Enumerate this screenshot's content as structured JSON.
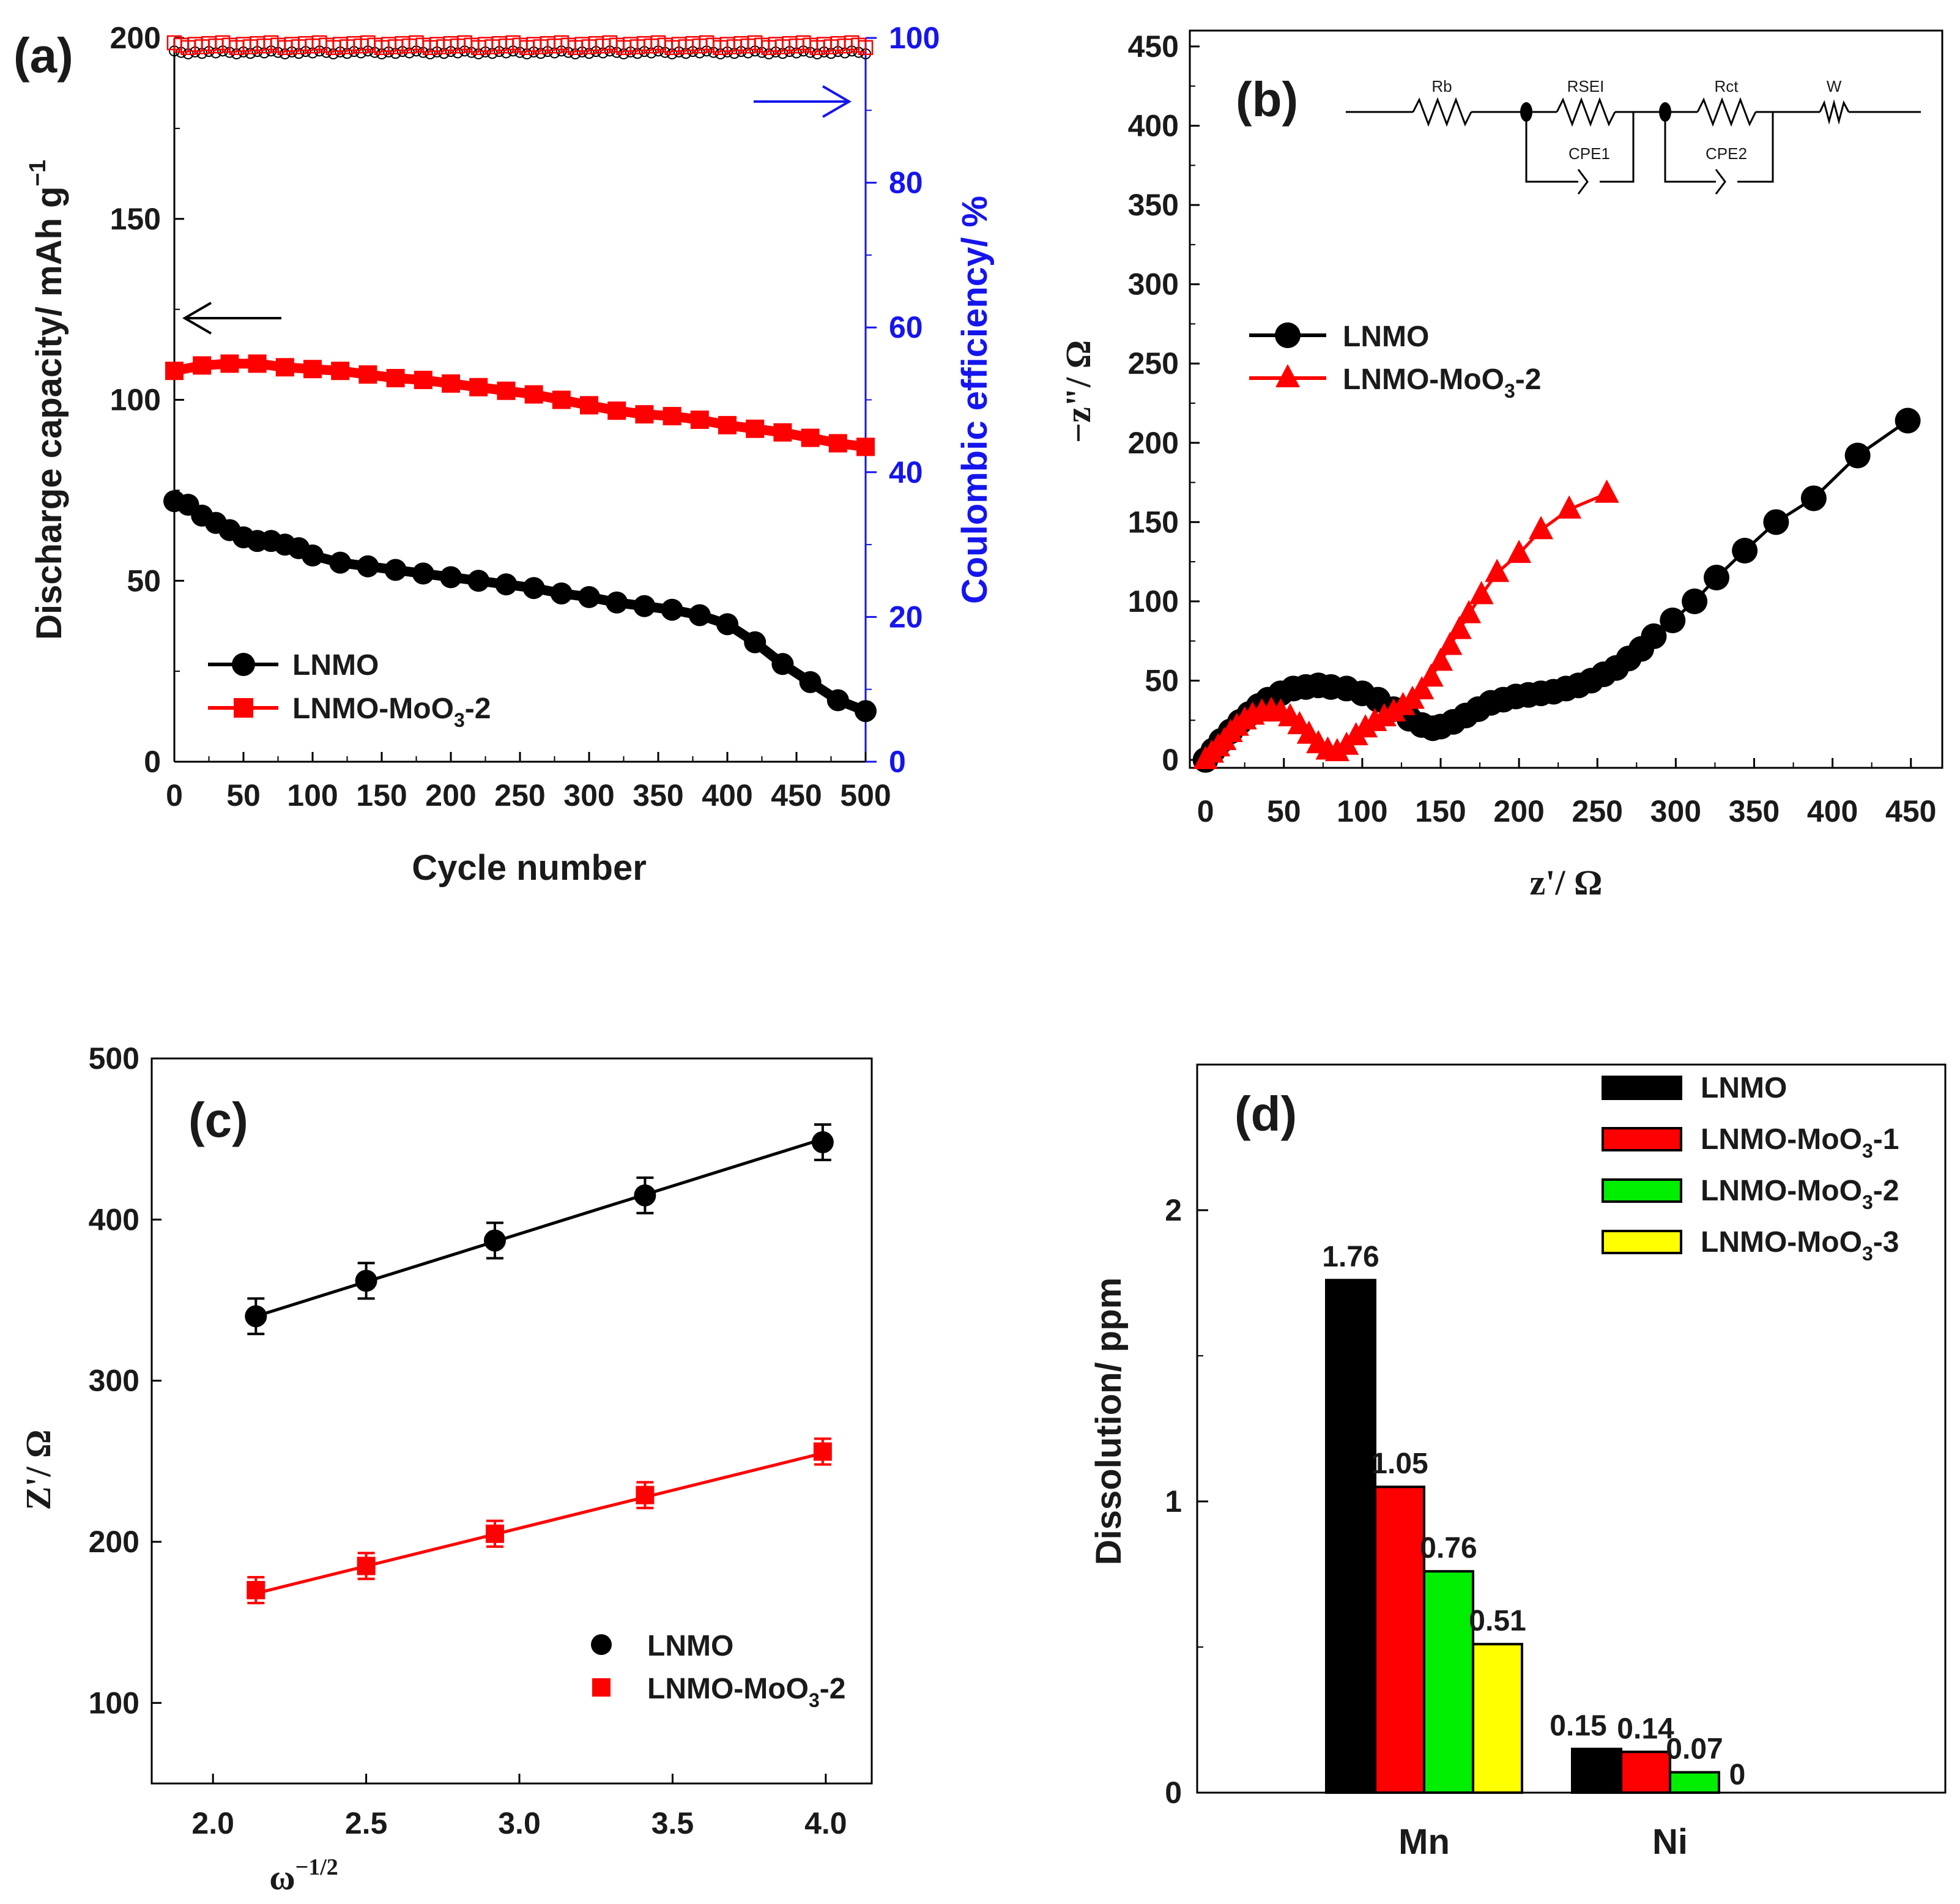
{
  "chart_data": [
    {
      "type": "line",
      "panel_label": "(a)",
      "xlabel": "Cycle number",
      "ylabel": "Discharge capacity/ mAh g",
      "ylabel_sup": "−1",
      "y2label": "Coulombic efficiency/ %",
      "xlim": [
        0,
        500
      ],
      "ylim": [
        0,
        200
      ],
      "y2lim": [
        0,
        100
      ],
      "x_ticks": [
        "0",
        "50",
        "100",
        "150",
        "200",
        "250",
        "300",
        "350",
        "400",
        "450",
        "500"
      ],
      "y_ticks": [
        "0",
        "50",
        "100",
        "150",
        "200"
      ],
      "y2_ticks": [
        "0",
        "20",
        "40",
        "60",
        "80",
        "100"
      ],
      "legend": [
        "LNMO",
        "LNMO-MoO3-2"
      ],
      "legend_main": "LNMO-MoO",
      "legend_sub": "3",
      "legend_tail": "-2",
      "series": [
        {
          "name": "LNMO",
          "color": "#000000",
          "x": [
            0,
            10,
            20,
            30,
            40,
            50,
            60,
            70,
            80,
            90,
            100,
            120,
            140,
            160,
            180,
            200,
            220,
            240,
            260,
            280,
            300,
            320,
            340,
            360,
            380,
            400,
            420,
            440,
            460,
            480,
            500
          ],
          "values": [
            72,
            71,
            68,
            66,
            64,
            62,
            61,
            61,
            60,
            59,
            57,
            55,
            54,
            53,
            52,
            51,
            50,
            49,
            48,
            46.5,
            45.5,
            44,
            43,
            42,
            40.5,
            38,
            33,
            27,
            22,
            17,
            14
          ]
        },
        {
          "name": "LNMO-MoO3-2",
          "color": "#ff0000",
          "x": [
            0,
            20,
            40,
            60,
            80,
            100,
            120,
            140,
            160,
            180,
            200,
            220,
            240,
            260,
            280,
            300,
            320,
            340,
            360,
            380,
            400,
            420,
            440,
            460,
            480,
            500
          ],
          "values": [
            108,
            109.5,
            110,
            110,
            109,
            108.5,
            108,
            107,
            106,
            105.5,
            104.5,
            103.5,
            102.5,
            101.5,
            100,
            98.5,
            97,
            96,
            95.5,
            94.5,
            93,
            92,
            91,
            89.5,
            88,
            87
          ]
        },
        {
          "name": "LNMO CE",
          "color": "#000000",
          "axis": "right",
          "value": 98
        },
        {
          "name": "LNMO-MoO3-2 CE",
          "color": "#ff0000",
          "axis": "right",
          "value": 99
        }
      ]
    },
    {
      "type": "scatter",
      "panel_label": "(b)",
      "xlabel": "z'/ Ω",
      "ylabel": "−z\"/ Ω",
      "xlim": [
        -10,
        470
      ],
      "ylim": [
        -5,
        460
      ],
      "x_ticks": [
        "0",
        "50",
        "100",
        "150",
        "200",
        "250",
        "300",
        "350",
        "400",
        "450"
      ],
      "y_ticks": [
        "0",
        "50",
        "100",
        "150",
        "200",
        "250",
        "300",
        "350",
        "400",
        "450"
      ],
      "legend": [
        "LNMO",
        "LNMO-MoO3-2"
      ],
      "legend_main": "LNMO-MoO",
      "legend_sub": "3",
      "legend_tail": "-2",
      "circuit_labels": [
        "Rb",
        "RSEI",
        "Rct",
        "W",
        "CPE1",
        "CPE2"
      ],
      "series": [
        {
          "name": "LNMO",
          "color": "#000000",
          "x": [
            0,
            5,
            10,
            16,
            22,
            28,
            34,
            40,
            48,
            56,
            64,
            72,
            80,
            90,
            100,
            110,
            120,
            130,
            138,
            145,
            150,
            158,
            166,
            174,
            182,
            190,
            198,
            206,
            214,
            222,
            230,
            238,
            246,
            254,
            262,
            270,
            278,
            286,
            298,
            312,
            326,
            344,
            364,
            388,
            416,
            448
          ],
          "values": [
            0,
            6,
            12,
            18,
            24,
            29,
            34,
            38,
            42,
            45,
            46,
            47,
            46,
            45,
            42,
            38,
            32,
            26,
            22,
            20,
            21,
            24,
            28,
            32,
            36,
            38,
            40,
            41,
            42,
            43,
            45,
            47,
            50,
            54,
            58,
            64,
            70,
            78,
            88,
            100,
            115,
            132,
            150,
            165,
            192,
            214
          ]
        },
        {
          "name": "LNMO-MoO3-2",
          "color": "#ff0000",
          "x": [
            0,
            4,
            8,
            12,
            16,
            20,
            25,
            30,
            36,
            42,
            48,
            54,
            60,
            66,
            72,
            78,
            84,
            90,
            96,
            102,
            108,
            114,
            120,
            126,
            132,
            138,
            144,
            150,
            156,
            162,
            168,
            176,
            186,
            200,
            214,
            232,
            256
          ],
          "values": [
            0,
            4,
            8,
            12,
            17,
            21,
            25,
            28,
            30,
            31,
            30,
            27,
            22,
            16,
            10,
            6,
            5,
            9,
            15,
            20,
            24,
            27,
            30,
            34,
            38,
            44,
            52,
            62,
            72,
            82,
            92,
            104,
            118,
            130,
            145,
            158,
            168
          ]
        }
      ]
    },
    {
      "type": "scatter",
      "panel_label": "(c)",
      "xlabel": "ω",
      "xlabel_sup": "−1/2",
      "ylabel": "Z'/ Ω",
      "xlim": [
        1.8,
        4.15
      ],
      "ylim": [
        50,
        500
      ],
      "x_ticks": [
        "2.0",
        "2.5",
        "3.0",
        "3.5",
        "4.0"
      ],
      "y_ticks": [
        "100",
        "200",
        "300",
        "400",
        "500"
      ],
      "legend": [
        "LNMO",
        "LNMO-MoO3-2"
      ],
      "legend_main": "LNMO-MoO",
      "legend_sub": "3",
      "legend_tail": "-2",
      "series": [
        {
          "name": "LNMO",
          "color": "#000000",
          "x": [
            2.14,
            2.5,
            2.92,
            3.41,
            3.99
          ],
          "values": [
            340,
            362,
            387,
            415,
            448
          ],
          "err": 11,
          "fit": [
            [
              2.14,
              340
            ],
            [
              3.99,
              450
            ]
          ]
        },
        {
          "name": "LNMO-MoO3-2",
          "color": "#ff0000",
          "x": [
            2.14,
            2.5,
            2.92,
            3.41,
            3.99
          ],
          "values": [
            170,
            185,
            205,
            229,
            256
          ],
          "err": 8,
          "fit": [
            [
              2.14,
              168
            ],
            [
              3.99,
              255
            ]
          ]
        }
      ]
    },
    {
      "type": "bar",
      "panel_label": "(d)",
      "ylabel": "Dissolution/ ppm",
      "categories": [
        "Mn",
        "Ni"
      ],
      "ylim": [
        0,
        2.5
      ],
      "y_ticks": [
        "0",
        "1",
        "2"
      ],
      "legend": [
        "LNMO",
        "LNMO-MoO3-1",
        "LNMO-MoO3-2",
        "LNMO-MoO3-3"
      ],
      "legend_main": "LNMO-MoO",
      "legend_sub": "3",
      "legend_tails": [
        "-1",
        "-2",
        "-3"
      ],
      "series": [
        {
          "name": "LNMO",
          "color": "#000000",
          "values": [
            1.76,
            0.15
          ],
          "labels": [
            "1.76",
            "0.15"
          ]
        },
        {
          "name": "LNMO-MoO3-1",
          "color": "#ff0000",
          "values": [
            1.05,
            0.14
          ],
          "labels": [
            "1.05",
            "0.14"
          ]
        },
        {
          "name": "LNMO-MoO3-2",
          "color": "#00ee00",
          "values": [
            0.76,
            0.07
          ],
          "labels": [
            "0.76",
            "0.07"
          ]
        },
        {
          "name": "LNMO-MoO3-3",
          "color": "#ffff00",
          "values": [
            0.51,
            0
          ],
          "labels": [
            "0.51",
            "0"
          ]
        }
      ]
    }
  ]
}
